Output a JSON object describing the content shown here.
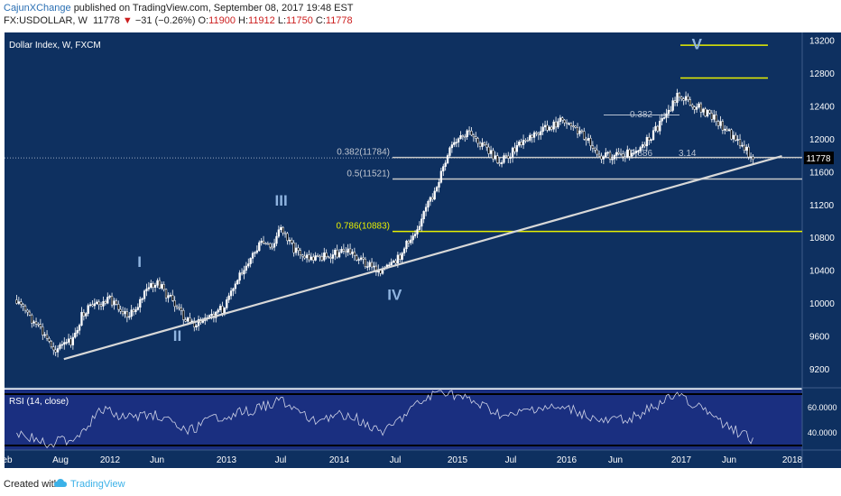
{
  "header": {
    "publisher": "CajunXChange",
    "published_text": "published on TradingView.com, September 08, 2017 19:48 EST",
    "symbol": "FX:USDOLLAR, W",
    "last": "11778",
    "arrow": "▼",
    "change": "−31 (−0.26%)",
    "o_label": "O:",
    "o_value": "11900",
    "h_label": "H:",
    "h_value": "11912",
    "l_label": "L:",
    "l_value": "11750",
    "c_label": "C:",
    "c_value": "11778"
  },
  "footer": {
    "created_with": "Created with",
    "brand": "TradingView"
  },
  "colors": {
    "background": "#0e3060",
    "rsi_background": "#1a2f80",
    "candle": "#ffffff",
    "fib_white": "#c8c8c8",
    "fib_yellow": "#e8f000",
    "trendline": "#d8d8d8",
    "wave_label": "#8fb4e0",
    "price_tag": "#000000"
  },
  "chart_data": [
    {
      "type": "candlestick",
      "title": "Dollar Index, W, FXCM",
      "price_scale": {
        "ylim": [
          8900,
          13300
        ],
        "ticks": [
          "13200",
          "12800",
          "12400",
          "12000",
          "11600",
          "11200",
          "10800",
          "10400",
          "10000",
          "9600",
          "9200"
        ],
        "last_price_tag": "11778"
      },
      "time_axis": {
        "tick_labels": [
          "eb",
          "Aug",
          "2012",
          "Jun",
          "2013",
          "Jul",
          "2014",
          "Jul",
          "2015",
          "Jul",
          "2016",
          "Jun",
          "2017",
          "Jun",
          "2018"
        ]
      },
      "close_path": [
        [
          "2011-03",
          10050
        ],
        [
          "2011-05",
          9750
        ],
        [
          "2011-07",
          9450
        ],
        [
          "2011-09",
          9550
        ],
        [
          "2011-10",
          9900
        ],
        [
          "2012-01",
          10050
        ],
        [
          "2012-03",
          9850
        ],
        [
          "2012-05",
          10200
        ],
        [
          "2012-06",
          10250
        ],
        [
          "2012-09",
          9800
        ],
        [
          "2012-10",
          9750
        ],
        [
          "2013-01",
          9950
        ],
        [
          "2013-03",
          10450
        ],
        [
          "2013-05",
          10750
        ],
        [
          "2013-06",
          10650
        ],
        [
          "2013-07",
          10950
        ],
        [
          "2013-08",
          10700
        ],
        [
          "2013-10",
          10550
        ],
        [
          "2014-02",
          10650
        ],
        [
          "2014-05",
          10420
        ],
        [
          "2014-06",
          10420
        ],
        [
          "2014-07",
          10480
        ],
        [
          "2014-09",
          10850
        ],
        [
          "2014-11",
          11300
        ],
        [
          "2015-01",
          11900
        ],
        [
          "2015-03",
          12100
        ],
        [
          "2015-05",
          11850
        ],
        [
          "2015-06",
          11720
        ],
        [
          "2015-09",
          12000
        ],
        [
          "2016-01",
          12250
        ],
        [
          "2016-03",
          12050
        ],
        [
          "2016-05",
          11800
        ],
        [
          "2016-08",
          11850
        ],
        [
          "2016-10",
          12000
        ],
        [
          "2016-12",
          12350
        ],
        [
          "2017-01",
          12550
        ],
        [
          "2017-03",
          12400
        ],
        [
          "2017-05",
          12250
        ],
        [
          "2017-07",
          12000
        ],
        [
          "2017-09",
          11778
        ]
      ],
      "fib_levels": [
        {
          "label": "0.382(11784)",
          "value": 11784,
          "color": "white"
        },
        {
          "label": "0.5(11521)",
          "value": 11521,
          "color": "white"
        },
        {
          "label": "0.786(10883)",
          "value": 10883,
          "color": "yellow"
        }
      ],
      "wave5_targets": [
        {
          "value": 13150,
          "color": "yellow"
        },
        {
          "value": 12750,
          "color": "yellow"
        }
      ],
      "wave4_projection": [
        {
          "label": "0.382",
          "value": 12300
        },
        {
          "label": "0.886",
          "value": 11800
        },
        {
          "label": "3.14",
          "value": 11800
        }
      ],
      "trendline": {
        "from": [
          "2011-08",
          9330
        ],
        "to": [
          "2017-12",
          11800
        ]
      },
      "wave_labels": [
        {
          "label": "I",
          "at": [
            "2012-04",
            10450
          ]
        },
        {
          "label": "II",
          "at": [
            "2012-08",
            9550
          ]
        },
        {
          "label": "III",
          "at": [
            "2013-07",
            11200
          ]
        },
        {
          "label": "IV",
          "at": [
            "2014-07",
            10050
          ]
        },
        {
          "label": "V",
          "at": [
            "2017-03",
            13100
          ]
        }
      ]
    },
    {
      "type": "line",
      "title": "RSI (14, close)",
      "ylim": [
        30,
        75
      ],
      "ticks": [
        "60.0000",
        "40.0000"
      ],
      "bands": [
        70,
        30
      ],
      "path": [
        [
          "2011-03",
          40
        ],
        [
          "2011-06",
          32
        ],
        [
          "2011-09",
          35
        ],
        [
          "2011-12",
          58
        ],
        [
          "2012-03",
          52
        ],
        [
          "2012-06",
          55
        ],
        [
          "2012-09",
          40
        ],
        [
          "2012-12",
          52
        ],
        [
          "2013-04",
          58
        ],
        [
          "2013-07",
          66
        ],
        [
          "2013-10",
          50
        ],
        [
          "2014-02",
          55
        ],
        [
          "2014-06",
          40
        ],
        [
          "2014-09",
          60
        ],
        [
          "2014-12",
          74
        ],
        [
          "2015-04",
          62
        ],
        [
          "2015-07",
          52
        ],
        [
          "2015-10",
          60
        ],
        [
          "2016-02",
          58
        ],
        [
          "2016-05",
          48
        ],
        [
          "2016-08",
          52
        ],
        [
          "2016-11",
          62
        ],
        [
          "2017-01",
          72
        ],
        [
          "2017-04",
          56
        ],
        [
          "2017-07",
          42
        ],
        [
          "2017-09",
          34
        ]
      ]
    }
  ]
}
